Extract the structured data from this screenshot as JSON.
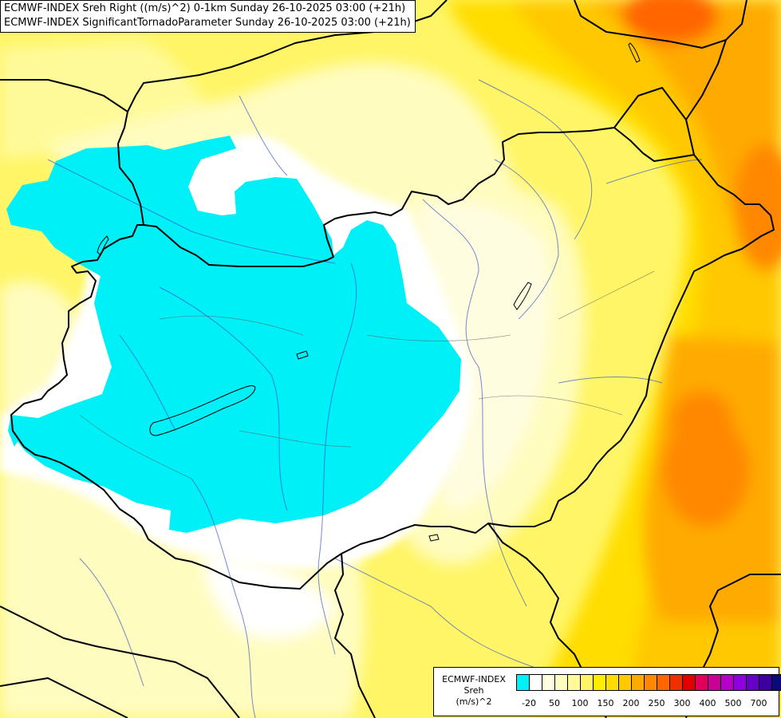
{
  "titles": {
    "line1": "ECMWF-INDEX Sreh Right ((m/s)^2) 0-1km Sunday 26-10-2025 03:00 (+21h)",
    "line2": "ECMWF-INDEX SignificantTornadoParameter Sunday 26-10-2025 03:00 (+21h)"
  },
  "legend": {
    "title": "ECMWF-INDEX",
    "variable": "Sreh",
    "unit": "(m/s)^2",
    "colors": [
      "#00f0f8",
      "#ffffff",
      "#fffde0",
      "#fffcbf",
      "#fffa99",
      "#fff566",
      "#ffee00",
      "#ffdd00",
      "#ffc800",
      "#ffaa00",
      "#ff8800",
      "#ff6600",
      "#f03000",
      "#e00000",
      "#e0005a",
      "#c80096",
      "#b400c8",
      "#9000dc",
      "#6400c8",
      "#3c00a0",
      "#0a0a78"
    ],
    "ticks": [
      "-20",
      "50",
      "100",
      "150",
      "200",
      "250",
      "300",
      "400",
      "500",
      "700"
    ]
  }
}
